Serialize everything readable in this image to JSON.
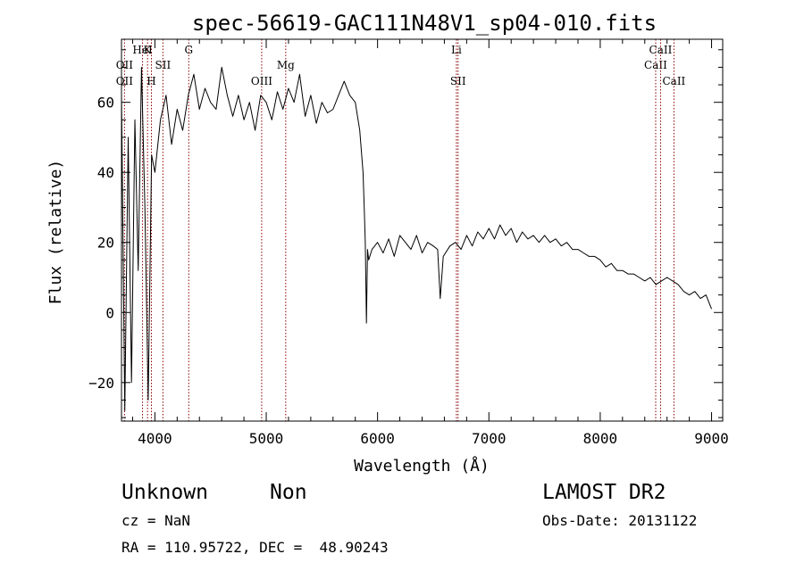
{
  "chart_data": {
    "type": "line",
    "title": "spec-56619-GAC111N48V1_sp04-010.fits",
    "xlabel": "Wavelength (Å)",
    "ylabel": "Flux (relative)",
    "xlim": [
      3700,
      9100
    ],
    "ylim": [
      -31,
      78
    ],
    "x_ticks": [
      4000,
      5000,
      6000,
      7000,
      8000,
      9000
    ],
    "x_tick_labels": [
      "4000",
      "5000",
      "6000",
      "7000",
      "8000",
      "9000"
    ],
    "y_ticks": [
      -20,
      0,
      20,
      40,
      60
    ],
    "y_tick_labels": [
      "−20",
      "0",
      "20",
      "40",
      "60"
    ],
    "grid": false,
    "series": [
      {
        "color": "#000000",
        "x": [
          3700,
          3730,
          3760,
          3790,
          3820,
          3850,
          3880,
          3910,
          3940,
          3970,
          4000,
          4050,
          4100,
          4150,
          4200,
          4250,
          4300,
          4350,
          4400,
          4450,
          4500,
          4550,
          4600,
          4650,
          4700,
          4750,
          4800,
          4850,
          4900,
          4950,
          5000,
          5050,
          5100,
          5150,
          5200,
          5250,
          5300,
          5350,
          5400,
          5450,
          5500,
          5550,
          5600,
          5650,
          5700,
          5750,
          5800,
          5840,
          5870,
          5880,
          5890,
          5900,
          5910,
          5920,
          5950,
          6000,
          6050,
          6100,
          6150,
          6200,
          6250,
          6300,
          6350,
          6400,
          6450,
          6500,
          6540,
          6563,
          6590,
          6650,
          6700,
          6750,
          6800,
          6850,
          6900,
          6950,
          7000,
          7050,
          7100,
          7150,
          7200,
          7250,
          7300,
          7350,
          7400,
          7450,
          7500,
          7550,
          7600,
          7650,
          7700,
          7750,
          7800,
          7850,
          7900,
          7950,
          8000,
          8050,
          8100,
          8150,
          8200,
          8250,
          8300,
          8350,
          8400,
          8450,
          8500,
          8550,
          8600,
          8650,
          8700,
          8750,
          8800,
          8850,
          8900,
          8950,
          9000
        ],
        "y": [
          62,
          -28,
          50,
          -20,
          55,
          12,
          70,
          30,
          -25,
          45,
          40,
          55,
          62,
          48,
          58,
          52,
          62,
          68,
          58,
          64,
          60,
          58,
          70,
          62,
          56,
          62,
          55,
          60,
          52,
          62,
          60,
          55,
          63,
          58,
          64,
          60,
          68,
          56,
          62,
          54,
          60,
          57,
          58,
          62,
          66,
          62,
          60,
          52,
          40,
          30,
          20,
          -3,
          18,
          15,
          18,
          20,
          17,
          21,
          16,
          22,
          20,
          18,
          22,
          17,
          20,
          19,
          18,
          4,
          16,
          19,
          20,
          18,
          22,
          19,
          23,
          21,
          24,
          21,
          25,
          22,
          24,
          20,
          23,
          21,
          22,
          20,
          22,
          20,
          21,
          19,
          20,
          18,
          18,
          17,
          16,
          16,
          15,
          13,
          14,
          12,
          12,
          11,
          11,
          10,
          9,
          10,
          8,
          9,
          10,
          9,
          8,
          6,
          5,
          6,
          4,
          5,
          1
        ]
      }
    ],
    "line_markers": [
      {
        "x": 3727,
        "labels": [
          "OII",
          "OII"
        ],
        "label_rows": [
          0,
          1
        ]
      },
      {
        "x": 3889,
        "labels": [
          "HeI"
        ],
        "label_rows": [
          2
        ]
      },
      {
        "x": 3934,
        "labels": [
          "K"
        ],
        "label_rows": [
          2
        ]
      },
      {
        "x": 3969,
        "labels": [
          "H"
        ],
        "label_rows": [
          1
        ]
      },
      {
        "x": 4072,
        "labels": [
          "SII"
        ],
        "label_rows": [
          0
        ]
      },
      {
        "x": 4304,
        "labels": [
          "G"
        ],
        "label_rows": [
          2
        ]
      },
      {
        "x": 4959,
        "labels": [
          "OIII"
        ],
        "label_rows": [
          1
        ]
      },
      {
        "x": 5175,
        "labels": [
          "Mg"
        ],
        "label_rows": [
          0
        ]
      },
      {
        "x": 6708,
        "labels": [
          "Li"
        ],
        "label_rows": [
          2
        ]
      },
      {
        "x": 6723,
        "labels": [
          "SII"
        ],
        "label_rows": [
          1
        ]
      },
      {
        "x": 8498,
        "labels": [
          "CaII"
        ],
        "label_rows": [
          0
        ]
      },
      {
        "x": 8542,
        "labels": [
          "CaII"
        ],
        "label_rows": [
          2
        ]
      },
      {
        "x": 8662,
        "labels": [
          "CaII"
        ],
        "label_rows": [
          1
        ]
      }
    ]
  },
  "info": {
    "class": "Unknown",
    "subclass": "Non",
    "cz": "cz = NaN",
    "radec": "RA = 110.95722, DEC =  48.90243",
    "survey": "LAMOST DR2",
    "obs_date": "Obs-Date: 20131122"
  }
}
